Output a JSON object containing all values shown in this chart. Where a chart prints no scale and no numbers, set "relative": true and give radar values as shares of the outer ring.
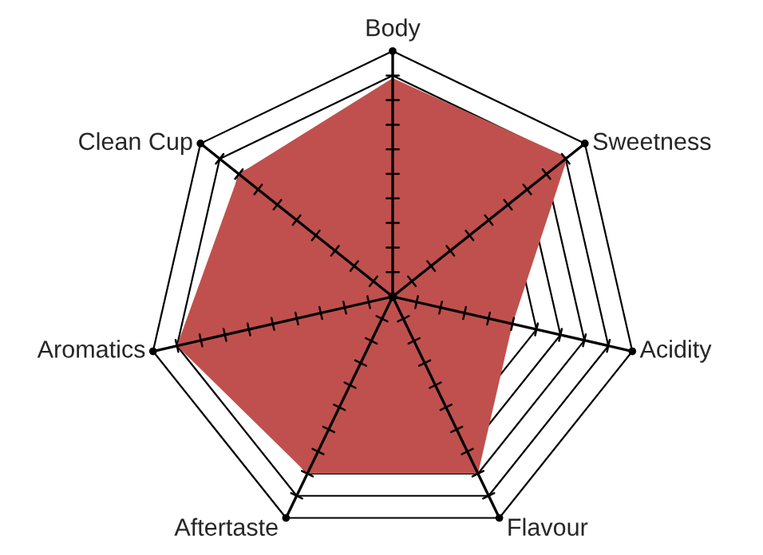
{
  "chart_data": {
    "type": "radar",
    "relative": true,
    "grid": true,
    "categories": [
      "Body",
      "Sweetness",
      "Acidity",
      "Flavour",
      "Aftertaste",
      "Aromatics",
      "Clean Cup"
    ],
    "series": [
      {
        "color": "#c0504d",
        "values": [
          0.89,
          0.91,
          0.5,
          0.8,
          0.8,
          0.9,
          0.8
        ]
      }
    ]
  }
}
